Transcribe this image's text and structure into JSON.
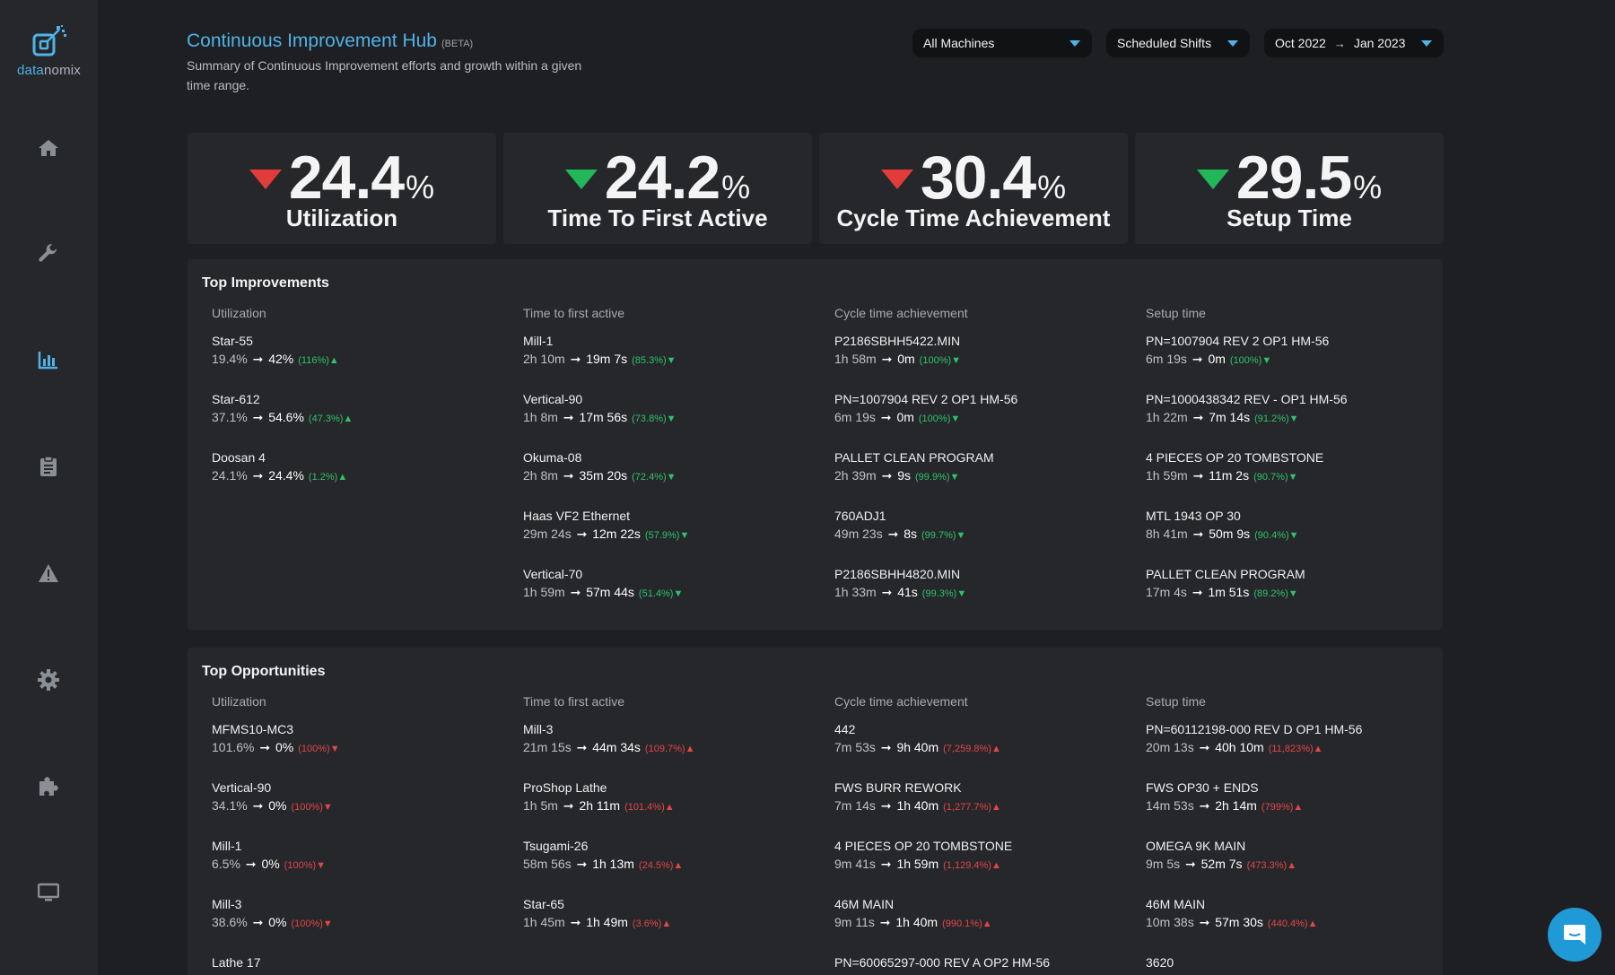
{
  "brand": {
    "name_a": "data",
    "name_b": "nomix"
  },
  "header": {
    "title": "Continuous Improvement Hub",
    "badge": "(BETA)",
    "subtitle_1": "Summary of Continuous Improvement efforts and growth within a given",
    "subtitle_2": "time range."
  },
  "filters": {
    "machines": "All Machines",
    "shifts": "Scheduled Shifts",
    "date_from": "Oct 2022",
    "date_arrow": "→",
    "date_to": "Jan 2023"
  },
  "colors": {
    "accent": "#4fb3e8",
    "good": "#22b85a",
    "bad": "#e23b3b",
    "panel": "#26272b",
    "bg": "#1e1f22"
  },
  "kpis": [
    {
      "value": "24.4",
      "unit": "%",
      "label": "Utilization",
      "trend": "down",
      "color": "red"
    },
    {
      "value": "24.2",
      "unit": "%",
      "label": "Time To First Active",
      "trend": "down",
      "color": "green"
    },
    {
      "value": "30.4",
      "unit": "%",
      "label": "Cycle Time Achievement",
      "trend": "down",
      "color": "red"
    },
    {
      "value": "29.5",
      "unit": "%",
      "label": "Setup Time",
      "trend": "down",
      "color": "green"
    }
  ],
  "improvements": {
    "title": "Top Improvements",
    "columns": [
      {
        "header": "Utilization",
        "items": [
          {
            "name": "Star-55",
            "from": "19.4%",
            "to": "42%",
            "pct": "(116%)"
          },
          {
            "name": "Star-612",
            "from": "37.1%",
            "to": "54.6%",
            "pct": "(47.3%)"
          },
          {
            "name": "Doosan 4",
            "from": "24.1%",
            "to": "24.4%",
            "pct": "(1.2%)"
          }
        ]
      },
      {
        "header": "Time to first active",
        "items": [
          {
            "name": "Mill-1",
            "from": "2h 10m",
            "to": "19m 7s",
            "pct": "(85.3%)"
          },
          {
            "name": "Vertical-90",
            "from": "1h 8m",
            "to": "17m 56s",
            "pct": "(73.8%)"
          },
          {
            "name": "Okuma-08",
            "from": "2h 8m",
            "to": "35m 20s",
            "pct": "(72.4%)"
          },
          {
            "name": "Haas VF2 Ethernet",
            "from": "29m 24s",
            "to": "12m 22s",
            "pct": "(57.9%)"
          },
          {
            "name": "Vertical-70",
            "from": "1h 59m",
            "to": "57m 44s",
            "pct": "(51.4%)"
          }
        ]
      },
      {
        "header": "Cycle time achievement",
        "items": [
          {
            "name": "P2186SBHH5422.MIN",
            "from": "1h 58m",
            "to": "0m",
            "pct": "(100%)"
          },
          {
            "name": "PN=1007904 REV 2 OP1 HM-56",
            "from": "6m 19s",
            "to": "0m",
            "pct": "(100%)"
          },
          {
            "name": "PALLET CLEAN PROGRAM",
            "from": "2h 39m",
            "to": "9s",
            "pct": "(99.9%)"
          },
          {
            "name": "760ADJ1",
            "from": "49m 23s",
            "to": "8s",
            "pct": "(99.7%)"
          },
          {
            "name": "P2186SBHH4820.MIN",
            "from": "1h 33m",
            "to": "41s",
            "pct": "(99.3%)"
          }
        ]
      },
      {
        "header": "Setup time",
        "items": [
          {
            "name": "PN=1007904 REV 2 OP1 HM-56",
            "from": "6m 19s",
            "to": "0m",
            "pct": "(100%)"
          },
          {
            "name": "PN=1000438342 REV - OP1 HM-56",
            "from": "1h 22m",
            "to": "7m 14s",
            "pct": "(91.2%)"
          },
          {
            "name": "4 PIECES OP 20 TOMBSTONE",
            "from": "1h 59m",
            "to": "11m 2s",
            "pct": "(90.7%)"
          },
          {
            "name": "MTL 1943 OP 30",
            "from": "8h 41m",
            "to": "50m 9s",
            "pct": "(90.4%)"
          },
          {
            "name": "PALLET CLEAN PROGRAM",
            "from": "17m 4s",
            "to": "1m 51s",
            "pct": "(89.2%)"
          }
        ]
      }
    ]
  },
  "opportunities": {
    "title": "Top Opportunities",
    "columns": [
      {
        "header": "Utilization",
        "items": [
          {
            "name": "MFMS10-MC3",
            "from": "101.6%",
            "to": "0%",
            "pct": "(100%)"
          },
          {
            "name": "Vertical-90",
            "from": "34.1%",
            "to": "0%",
            "pct": "(100%)"
          },
          {
            "name": "Mill-1",
            "from": "6.5%",
            "to": "0%",
            "pct": "(100%)"
          },
          {
            "name": "Mill-3",
            "from": "38.6%",
            "to": "0%",
            "pct": "(100%)"
          },
          {
            "name": "Lathe 17",
            "from": "",
            "to": "",
            "pct": ""
          }
        ]
      },
      {
        "header": "Time to first active",
        "items": [
          {
            "name": "Mill-3",
            "from": "21m 15s",
            "to": "44m 34s",
            "pct": "(109.7%)"
          },
          {
            "name": "ProShop Lathe",
            "from": "1h 5m",
            "to": "2h 11m",
            "pct": "(101.4%)"
          },
          {
            "name": "Tsugami-26",
            "from": "58m 56s",
            "to": "1h 13m",
            "pct": "(24.5%)"
          },
          {
            "name": "Star-65",
            "from": "1h 45m",
            "to": "1h 49m",
            "pct": "(3.6%)"
          }
        ]
      },
      {
        "header": "Cycle time achievement",
        "items": [
          {
            "name": "442",
            "from": "7m 53s",
            "to": "9h 40m",
            "pct": "(7,259.8%)"
          },
          {
            "name": "FWS BURR REWORK",
            "from": "7m 14s",
            "to": "1h 40m",
            "pct": "(1,277.7%)"
          },
          {
            "name": "4 PIECES OP 20 TOMBSTONE",
            "from": "9m 41s",
            "to": "1h 59m",
            "pct": "(1,129.4%)"
          },
          {
            "name": "46M MAIN",
            "from": "9m 11s",
            "to": "1h 40m",
            "pct": "(990.1%)"
          },
          {
            "name": "PN=60065297-000 REV A OP2 HM-56",
            "from": "",
            "to": "",
            "pct": ""
          }
        ]
      },
      {
        "header": "Setup time",
        "items": [
          {
            "name": "PN=60112198-000 REV D OP1 HM-56",
            "from": "20m 13s",
            "to": "40h 10m",
            "pct": "(11,823%)"
          },
          {
            "name": "FWS OP30 + ENDS",
            "from": "14m 53s",
            "to": "2h 14m",
            "pct": "(799%)"
          },
          {
            "name": "OMEGA 9K MAIN",
            "from": "9m 5s",
            "to": "52m 7s",
            "pct": "(473.3%)"
          },
          {
            "name": "46M MAIN",
            "from": "10m 38s",
            "to": "57m 30s",
            "pct": "(440.4%)"
          },
          {
            "name": "3620",
            "from": "",
            "to": "",
            "pct": ""
          }
        ]
      }
    ]
  },
  "nav": [
    "home-icon",
    "wrench-icon",
    "chart-icon",
    "clipboard-icon",
    "alert-icon",
    "gear-icon",
    "puzzle-icon",
    "monitor-icon"
  ]
}
